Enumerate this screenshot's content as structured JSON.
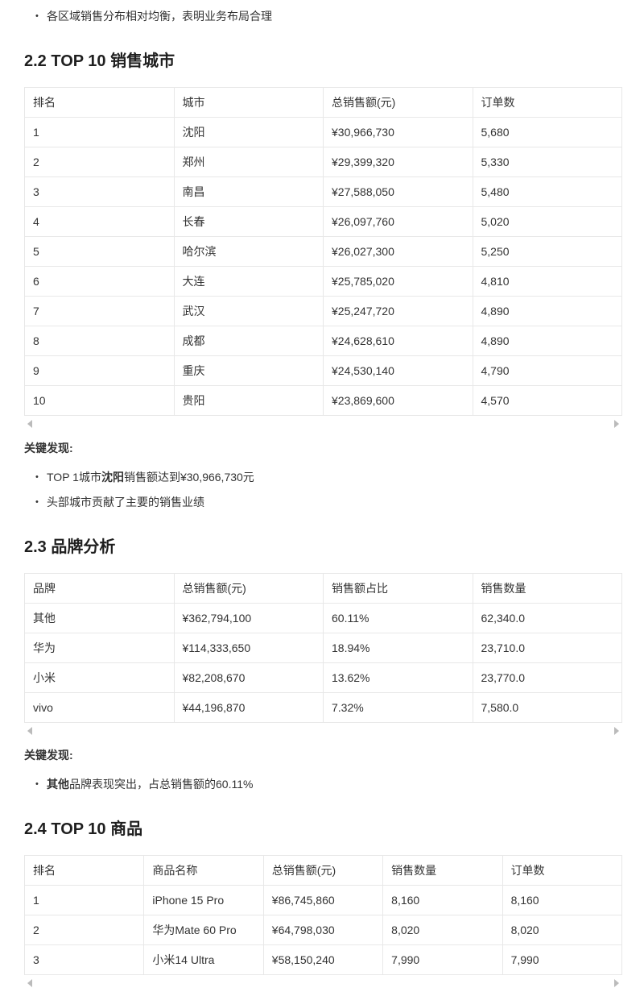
{
  "intro": {
    "bullet": "各区域销售分布相对均衡，表明业务布局合理"
  },
  "findings_label": "关键发现:",
  "colors": {
    "text": "#333333",
    "heading": "#1f1f1f",
    "table_border": "#e8e8e8",
    "scroll_arrow": "#bbbbbb"
  },
  "sections": [
    {
      "heading": "2.2 TOP 10 销售城市",
      "table": {
        "headers": [
          "排名",
          "城市",
          "总销售额(元)",
          "订单数"
        ],
        "rows": [
          [
            "1",
            "沈阳",
            "¥30,966,730",
            "5,680"
          ],
          [
            "2",
            "郑州",
            "¥29,399,320",
            "5,330"
          ],
          [
            "3",
            "南昌",
            "¥27,588,050",
            "5,480"
          ],
          [
            "4",
            "长春",
            "¥26,097,760",
            "5,020"
          ],
          [
            "5",
            "哈尔滨",
            "¥26,027,300",
            "5,250"
          ],
          [
            "6",
            "大连",
            "¥25,785,020",
            "4,810"
          ],
          [
            "7",
            "武汉",
            "¥25,247,720",
            "4,890"
          ],
          [
            "8",
            "成都",
            "¥24,628,610",
            "4,890"
          ],
          [
            "9",
            "重庆",
            "¥24,530,140",
            "4,790"
          ],
          [
            "10",
            "贵阳",
            "¥23,869,600",
            "4,570"
          ]
        ]
      },
      "findings": [
        [
          {
            "text": "TOP 1城市"
          },
          {
            "text": "沈阳",
            "bold": true
          },
          {
            "text": "销售额达到¥30,966,730元"
          }
        ],
        [
          {
            "text": "头部城市贡献了主要的销售业绩"
          }
        ]
      ]
    },
    {
      "heading": "2.3 品牌分析",
      "table": {
        "headers": [
          "品牌",
          "总销售额(元)",
          "销售额占比",
          "销售数量"
        ],
        "rows": [
          [
            "其他",
            "¥362,794,100",
            "60.11%",
            "62,340.0"
          ],
          [
            "华为",
            "¥114,333,650",
            "18.94%",
            "23,710.0"
          ],
          [
            "小米",
            "¥82,208,670",
            "13.62%",
            "23,770.0"
          ],
          [
            "vivo",
            "¥44,196,870",
            "7.32%",
            "7,580.0"
          ]
        ]
      },
      "findings": [
        [
          {
            "text": "其他",
            "bold": true
          },
          {
            "text": "品牌表现突出，占总销售额的60.11%"
          }
        ]
      ]
    },
    {
      "heading": "2.4 TOP 10 商品",
      "table": {
        "headers": [
          "排名",
          "商品名称",
          "总销售额(元)",
          "销售数量",
          "订单数"
        ],
        "rows": [
          [
            "1",
            "iPhone 15 Pro",
            "¥86,745,860",
            "8,160",
            "8,160"
          ],
          [
            "2",
            "华为Mate 60 Pro",
            "¥64,798,030",
            "8,020",
            "8,020"
          ],
          [
            "3",
            "小米14 Ultra",
            "¥58,150,240",
            "7,990",
            "7,990"
          ]
        ]
      },
      "findings": []
    }
  ]
}
